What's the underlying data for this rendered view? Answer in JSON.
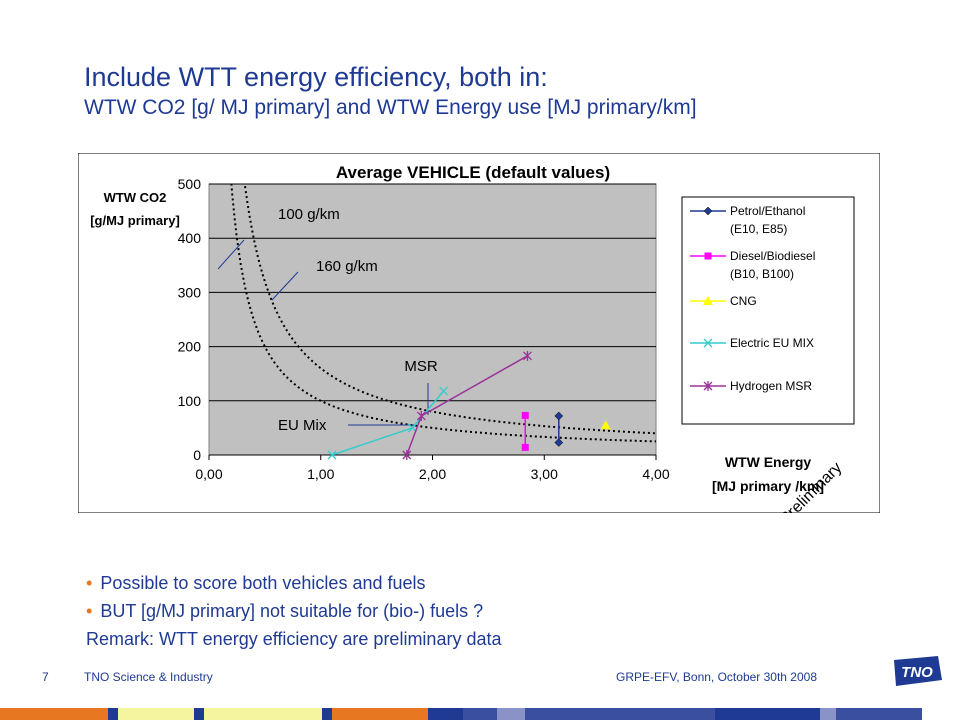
{
  "slide": {
    "title_line1": "Include WTT energy efficiency, both in:",
    "title_line2": "WTW CO2 [g/ MJ primary] and WTW Energy use [MJ primary/km]",
    "bullets": [
      "Possible to score both vehicles and fuels",
      "BUT [g/MJ primary] not suitable for (bio-) fuels ?"
    ],
    "remark": "Remark: WTT energy efficiency are preliminary data",
    "slide_number": "7",
    "footer_left": "TNO Science & Industry",
    "footer_right": "GRPE-EFV, Bonn, October 30th 2008",
    "logo_text": "TNO",
    "watermark": "Preliminary",
    "colors": {
      "title": "#1f3a93",
      "bullet": "#e87722",
      "plot_bg": "#c0c0c0",
      "bar_segments": [
        "#e87722",
        "#1f3a93",
        "#f5f5a0",
        "#1f3a93",
        "#f5f5a0",
        "#1f3a93",
        "#e87722",
        "#1f3a93",
        "#3b4fa0",
        "#8a93c8",
        "#3b4fa0",
        "#1f3a93",
        "#8a93c8",
        "#3b4fa0"
      ]
    }
  },
  "chart_data": {
    "type": "scatter",
    "title": "Average VEHICLE (default values)",
    "ylabel_line1": "WTW CO2",
    "ylabel_line2": "[g/MJ primary]",
    "xlabel_line1": "WTW Energy",
    "xlabel_line2": "[MJ primary /km]",
    "xlim": [
      0,
      4
    ],
    "ylim": [
      0,
      500
    ],
    "x_ticks": [
      "0,00",
      "1,00",
      "2,00",
      "3,00",
      "4,00"
    ],
    "y_ticks": [
      "0",
      "100",
      "200",
      "300",
      "400",
      "500"
    ],
    "grid": "horizontal",
    "legend_position": "right",
    "iso_curves": [
      {
        "label": "100 g/km",
        "g_per_km": 100
      },
      {
        "label": "160 g/km",
        "g_per_km": 160
      }
    ],
    "annotations": [
      "MSR",
      "EU Mix"
    ],
    "series": [
      {
        "name": "Petrol/Ethanol (E10, E85)",
        "color": "#1f3a93",
        "marker": "diamond",
        "points": [
          {
            "x": 3.13,
            "y": 72
          },
          {
            "x": 3.13,
            "y": 23
          }
        ]
      },
      {
        "name": "Diesel/Biodiesel (B10, B100)",
        "color": "#ff00ff",
        "marker": "square",
        "points": [
          {
            "x": 2.83,
            "y": 73
          },
          {
            "x": 2.83,
            "y": 14
          }
        ]
      },
      {
        "name": "CNG",
        "color": "#ffff00",
        "marker": "triangle",
        "points": [
          {
            "x": 3.55,
            "y": 55
          }
        ]
      },
      {
        "name": "Electric EU MIX",
        "color": "#33cccc",
        "marker": "x",
        "points": [
          {
            "x": 1.1,
            "y": 0
          },
          {
            "x": 1.82,
            "y": 50
          },
          {
            "x": 2.1,
            "y": 118
          }
        ]
      },
      {
        "name": "Hydrogen MSR",
        "color": "#993399",
        "marker": "star",
        "points": [
          {
            "x": 1.77,
            "y": 0
          },
          {
            "x": 1.9,
            "y": 72
          },
          {
            "x": 2.85,
            "y": 183
          }
        ]
      }
    ]
  }
}
